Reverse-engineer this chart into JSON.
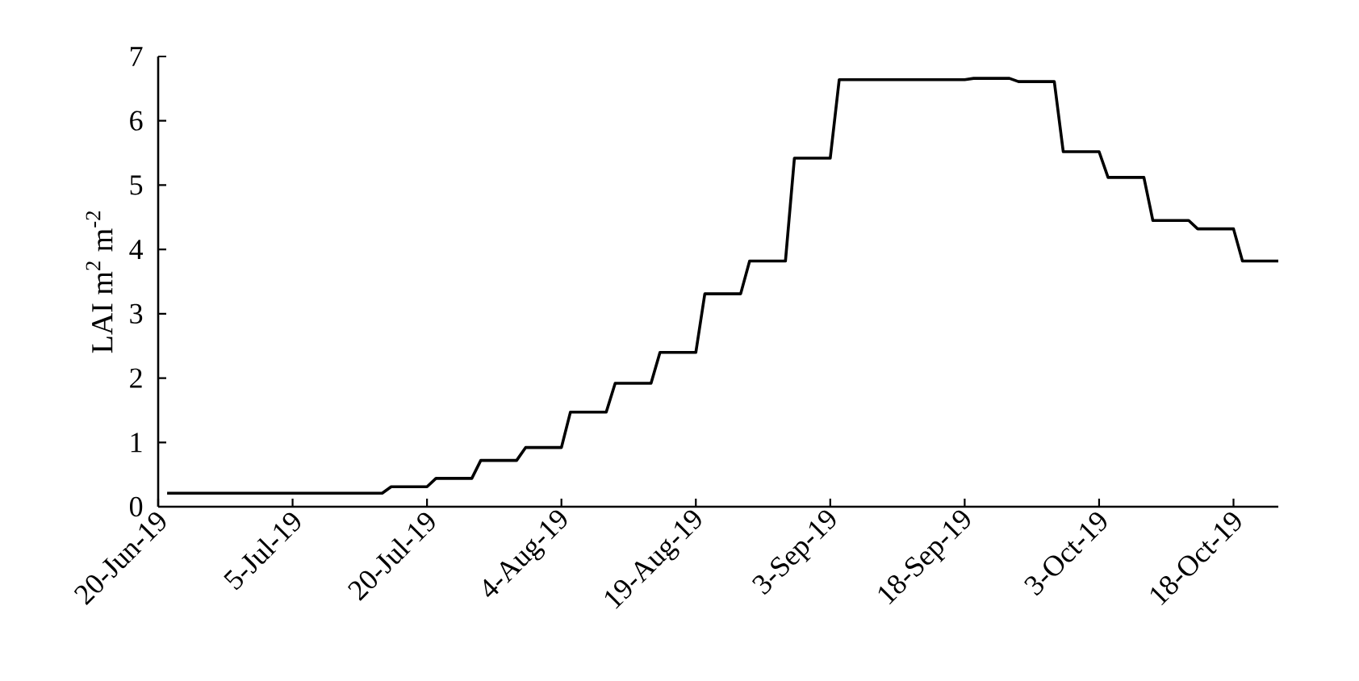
{
  "chart_data": {
    "type": "line",
    "ylabel": "LAI m$^{2}$ m$^{-2}$",
    "x": [
      "2019-06-21",
      "2019-07-15",
      "2019-07-16",
      "2019-07-20",
      "2019-07-21",
      "2019-07-25",
      "2019-07-26",
      "2019-07-30",
      "2019-07-31",
      "2019-08-04",
      "2019-08-05",
      "2019-08-09",
      "2019-08-10",
      "2019-08-14",
      "2019-08-15",
      "2019-08-19",
      "2019-08-20",
      "2019-08-24",
      "2019-08-25",
      "2019-08-29",
      "2019-08-30",
      "2019-09-03",
      "2019-09-04",
      "2019-09-18",
      "2019-09-19",
      "2019-09-23",
      "2019-09-24",
      "2019-09-28",
      "2019-09-29",
      "2019-10-03",
      "2019-10-04",
      "2019-10-08",
      "2019-10-09",
      "2019-10-13",
      "2019-10-14",
      "2019-10-18",
      "2019-10-19",
      "2019-10-23"
    ],
    "values": [
      0.21,
      0.21,
      0.31,
      0.31,
      0.44,
      0.44,
      0.72,
      0.72,
      0.92,
      0.92,
      1.47,
      1.47,
      1.92,
      1.92,
      2.4,
      2.4,
      3.31,
      3.31,
      3.82,
      3.82,
      5.42,
      5.42,
      6.64,
      6.64,
      6.66,
      6.66,
      6.61,
      6.61,
      5.52,
      5.52,
      5.12,
      5.12,
      4.45,
      4.45,
      4.32,
      4.32,
      3.82,
      3.82
    ],
    "color": "#000000",
    "marker": "none",
    "line_style": "solid",
    "xlim": [
      "2019-06-20",
      "2019-10-23"
    ],
    "ylim": [
      0,
      7
    ],
    "xticks": [
      {
        "value": "2019-06-20",
        "label": "20-Jun-19"
      },
      {
        "value": "2019-07-05",
        "label": "5-Jul-19"
      },
      {
        "value": "2019-07-20",
        "label": "20-Jul-19"
      },
      {
        "value": "2019-08-04",
        "label": "4-Aug-19"
      },
      {
        "value": "2019-08-19",
        "label": "19-Aug-19"
      },
      {
        "value": "2019-09-03",
        "label": "3-Sep-19"
      },
      {
        "value": "2019-09-18",
        "label": "18-Sep-19"
      },
      {
        "value": "2019-10-03",
        "label": "3-Oct-19"
      },
      {
        "value": "2019-10-18",
        "label": "18-Oct-19"
      }
    ],
    "yticks": [
      0,
      1,
      2,
      3,
      4,
      5,
      6,
      7
    ]
  }
}
